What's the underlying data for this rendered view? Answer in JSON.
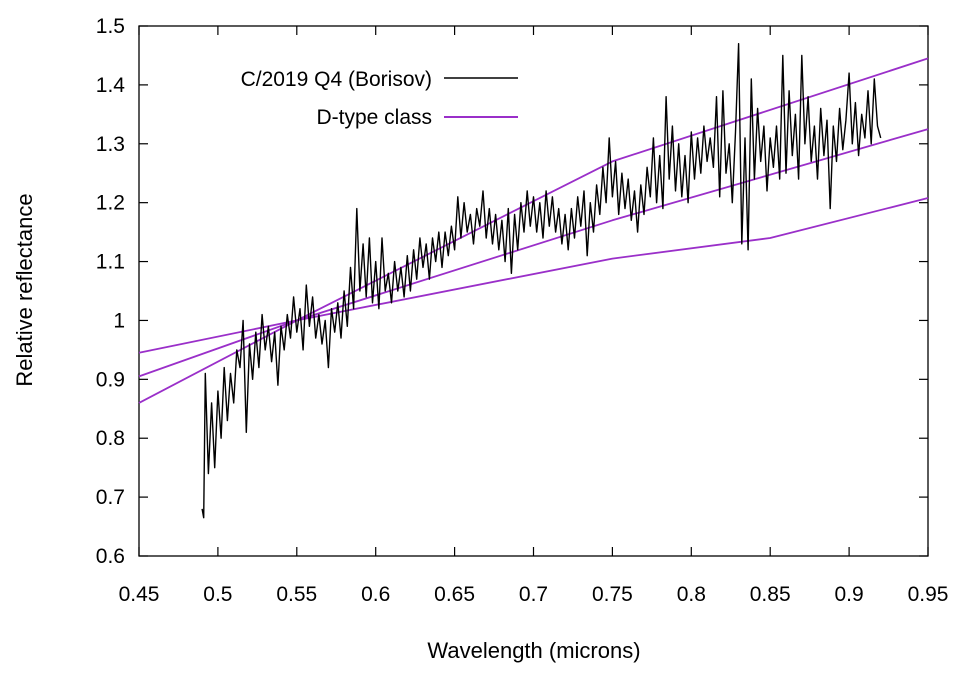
{
  "chart_data": {
    "type": "line",
    "xlabel": "Wavelength (microns)",
    "ylabel": "Relative reflectance",
    "xlim": [
      0.45,
      0.95
    ],
    "ylim": [
      0.6,
      1.5
    ],
    "x_ticks": [
      "0.45",
      "0.5",
      "0.55",
      "0.6",
      "0.65",
      "0.7",
      "0.75",
      "0.8",
      "0.85",
      "0.9",
      "0.95"
    ],
    "y_ticks": [
      "0.6",
      "0.7",
      "0.8",
      "0.9",
      "1",
      "1.1",
      "1.2",
      "1.3",
      "1.4",
      "1.5"
    ],
    "grid": false,
    "legend_position": "top-left",
    "legend": [
      {
        "label": "C/2019 Q4 (Borisov)",
        "color": "#000000"
      },
      {
        "label": "D-type class",
        "color": "#9a2fc9"
      }
    ],
    "series": [
      {
        "name": "C/2019 Q4 (Borisov)",
        "color": "#000000",
        "points": [
          [
            0.49,
            0.68
          ],
          [
            0.491,
            0.665
          ],
          [
            0.492,
            0.91
          ],
          [
            0.494,
            0.74
          ],
          [
            0.496,
            0.86
          ],
          [
            0.498,
            0.75
          ],
          [
            0.5,
            0.88
          ],
          [
            0.502,
            0.8
          ],
          [
            0.504,
            0.92
          ],
          [
            0.506,
            0.83
          ],
          [
            0.508,
            0.91
          ],
          [
            0.51,
            0.86
          ],
          [
            0.512,
            0.95
          ],
          [
            0.514,
            0.92
          ],
          [
            0.516,
            1.0
          ],
          [
            0.518,
            0.81
          ],
          [
            0.52,
            0.96
          ],
          [
            0.522,
            0.9
          ],
          [
            0.524,
            0.98
          ],
          [
            0.526,
            0.92
          ],
          [
            0.528,
            1.01
          ],
          [
            0.53,
            0.95
          ],
          [
            0.532,
            0.99
          ],
          [
            0.534,
            0.93
          ],
          [
            0.536,
            0.98
          ],
          [
            0.538,
            0.89
          ],
          [
            0.54,
            0.99
          ],
          [
            0.542,
            0.95
          ],
          [
            0.544,
            1.01
          ],
          [
            0.546,
            0.97
          ],
          [
            0.548,
            1.04
          ],
          [
            0.55,
            0.98
          ],
          [
            0.552,
            1.02
          ],
          [
            0.554,
            0.95
          ],
          [
            0.556,
            1.06
          ],
          [
            0.558,
            0.99
          ],
          [
            0.56,
            1.04
          ],
          [
            0.562,
            0.97
          ],
          [
            0.564,
            1.01
          ],
          [
            0.566,
            0.96
          ],
          [
            0.568,
            1.0
          ],
          [
            0.57,
            0.92
          ],
          [
            0.572,
            1.02
          ],
          [
            0.574,
            0.98
          ],
          [
            0.576,
            1.03
          ],
          [
            0.578,
            0.97
          ],
          [
            0.58,
            1.05
          ],
          [
            0.582,
            0.99
          ],
          [
            0.584,
            1.09
          ],
          [
            0.586,
            1.02
          ],
          [
            0.588,
            1.19
          ],
          [
            0.59,
            1.05
          ],
          [
            0.592,
            1.13
          ],
          [
            0.594,
            1.04
          ],
          [
            0.596,
            1.14
          ],
          [
            0.598,
            1.03
          ],
          [
            0.6,
            1.1
          ],
          [
            0.602,
            1.02
          ],
          [
            0.604,
            1.14
          ],
          [
            0.606,
            1.05
          ],
          [
            0.608,
            1.08
          ],
          [
            0.61,
            1.03
          ],
          [
            0.612,
            1.1
          ],
          [
            0.614,
            1.05
          ],
          [
            0.616,
            1.09
          ],
          [
            0.618,
            1.04
          ],
          [
            0.62,
            1.11
          ],
          [
            0.622,
            1.05
          ],
          [
            0.624,
            1.12
          ],
          [
            0.626,
            1.07
          ],
          [
            0.628,
            1.14
          ],
          [
            0.63,
            1.09
          ],
          [
            0.632,
            1.13
          ],
          [
            0.634,
            1.07
          ],
          [
            0.636,
            1.14
          ],
          [
            0.638,
            1.1
          ],
          [
            0.64,
            1.15
          ],
          [
            0.642,
            1.09
          ],
          [
            0.644,
            1.15
          ],
          [
            0.646,
            1.11
          ],
          [
            0.648,
            1.16
          ],
          [
            0.65,
            1.12
          ],
          [
            0.652,
            1.21
          ],
          [
            0.654,
            1.14
          ],
          [
            0.656,
            1.2
          ],
          [
            0.658,
            1.15
          ],
          [
            0.66,
            1.18
          ],
          [
            0.662,
            1.13
          ],
          [
            0.664,
            1.19
          ],
          [
            0.666,
            1.16
          ],
          [
            0.668,
            1.22
          ],
          [
            0.67,
            1.14
          ],
          [
            0.672,
            1.19
          ],
          [
            0.674,
            1.13
          ],
          [
            0.676,
            1.18
          ],
          [
            0.678,
            1.12
          ],
          [
            0.68,
            1.17
          ],
          [
            0.682,
            1.1
          ],
          [
            0.684,
            1.19
          ],
          [
            0.686,
            1.08
          ],
          [
            0.688,
            1.18
          ],
          [
            0.69,
            1.12
          ],
          [
            0.692,
            1.2
          ],
          [
            0.694,
            1.15
          ],
          [
            0.696,
            1.22
          ],
          [
            0.698,
            1.16
          ],
          [
            0.7,
            1.21
          ],
          [
            0.702,
            1.15
          ],
          [
            0.704,
            1.2
          ],
          [
            0.706,
            1.14
          ],
          [
            0.708,
            1.22
          ],
          [
            0.71,
            1.16
          ],
          [
            0.712,
            1.21
          ],
          [
            0.714,
            1.15
          ],
          [
            0.716,
            1.19
          ],
          [
            0.718,
            1.13
          ],
          [
            0.72,
            1.18
          ],
          [
            0.722,
            1.12
          ],
          [
            0.724,
            1.19
          ],
          [
            0.726,
            1.14
          ],
          [
            0.728,
            1.21
          ],
          [
            0.73,
            1.16
          ],
          [
            0.732,
            1.22
          ],
          [
            0.734,
            1.11
          ],
          [
            0.736,
            1.2
          ],
          [
            0.738,
            1.15
          ],
          [
            0.74,
            1.23
          ],
          [
            0.742,
            1.18
          ],
          [
            0.744,
            1.26
          ],
          [
            0.746,
            1.2
          ],
          [
            0.748,
            1.31
          ],
          [
            0.75,
            1.21
          ],
          [
            0.752,
            1.27
          ],
          [
            0.754,
            1.18
          ],
          [
            0.756,
            1.25
          ],
          [
            0.758,
            1.19
          ],
          [
            0.76,
            1.24
          ],
          [
            0.762,
            1.17
          ],
          [
            0.764,
            1.22
          ],
          [
            0.766,
            1.15
          ],
          [
            0.768,
            1.23
          ],
          [
            0.77,
            1.18
          ],
          [
            0.772,
            1.26
          ],
          [
            0.774,
            1.21
          ],
          [
            0.776,
            1.31
          ],
          [
            0.778,
            1.2
          ],
          [
            0.78,
            1.28
          ],
          [
            0.782,
            1.19
          ],
          [
            0.784,
            1.38
          ],
          [
            0.786,
            1.24
          ],
          [
            0.788,
            1.33
          ],
          [
            0.79,
            1.22
          ],
          [
            0.792,
            1.3
          ],
          [
            0.794,
            1.21
          ],
          [
            0.796,
            1.28
          ],
          [
            0.798,
            1.2
          ],
          [
            0.8,
            1.32
          ],
          [
            0.802,
            1.24
          ],
          [
            0.804,
            1.31
          ],
          [
            0.806,
            1.25
          ],
          [
            0.808,
            1.33
          ],
          [
            0.81,
            1.27
          ],
          [
            0.812,
            1.31
          ],
          [
            0.814,
            1.26
          ],
          [
            0.816,
            1.38
          ],
          [
            0.818,
            1.21
          ],
          [
            0.82,
            1.39
          ],
          [
            0.822,
            1.25
          ],
          [
            0.824,
            1.3
          ],
          [
            0.826,
            1.2
          ],
          [
            0.828,
            1.32
          ],
          [
            0.83,
            1.47
          ],
          [
            0.832,
            1.13
          ],
          [
            0.834,
            1.31
          ],
          [
            0.836,
            1.12
          ],
          [
            0.838,
            1.41
          ],
          [
            0.84,
            1.24
          ],
          [
            0.842,
            1.36
          ],
          [
            0.844,
            1.27
          ],
          [
            0.846,
            1.33
          ],
          [
            0.848,
            1.22
          ],
          [
            0.85,
            1.31
          ],
          [
            0.852,
            1.26
          ],
          [
            0.854,
            1.33
          ],
          [
            0.856,
            1.24
          ],
          [
            0.858,
            1.45
          ],
          [
            0.86,
            1.25
          ],
          [
            0.862,
            1.39
          ],
          [
            0.864,
            1.28
          ],
          [
            0.866,
            1.35
          ],
          [
            0.868,
            1.24
          ],
          [
            0.87,
            1.45
          ],
          [
            0.872,
            1.3
          ],
          [
            0.874,
            1.38
          ],
          [
            0.876,
            1.27
          ],
          [
            0.878,
            1.33
          ],
          [
            0.88,
            1.24
          ],
          [
            0.882,
            1.36
          ],
          [
            0.884,
            1.28
          ],
          [
            0.886,
            1.34
          ],
          [
            0.888,
            1.19
          ],
          [
            0.89,
            1.33
          ],
          [
            0.892,
            1.27
          ],
          [
            0.894,
            1.36
          ],
          [
            0.896,
            1.29
          ],
          [
            0.898,
            1.34
          ],
          [
            0.9,
            1.42
          ],
          [
            0.902,
            1.3
          ],
          [
            0.904,
            1.37
          ],
          [
            0.906,
            1.28
          ],
          [
            0.908,
            1.35
          ],
          [
            0.91,
            1.31
          ],
          [
            0.912,
            1.39
          ],
          [
            0.914,
            1.3
          ],
          [
            0.916,
            1.41
          ],
          [
            0.918,
            1.33
          ],
          [
            0.92,
            1.31
          ]
        ]
      },
      {
        "name": "D-type class",
        "color": "#9a2fc9",
        "points": [
          [
            0.45,
            0.86
          ],
          [
            0.55,
            1.0
          ],
          [
            0.75,
            1.27
          ],
          [
            0.95,
            1.445
          ]
        ]
      },
      {
        "name": "D-type class",
        "color": "#9a2fc9",
        "points": [
          [
            0.45,
            0.905
          ],
          [
            0.55,
            1.0
          ],
          [
            0.75,
            1.17
          ],
          [
            0.95,
            1.325
          ]
        ]
      },
      {
        "name": "D-type class",
        "color": "#9a2fc9",
        "points": [
          [
            0.45,
            0.945
          ],
          [
            0.55,
            1.0
          ],
          [
            0.75,
            1.105
          ],
          [
            0.85,
            1.14
          ],
          [
            0.95,
            1.208
          ]
        ]
      }
    ]
  }
}
